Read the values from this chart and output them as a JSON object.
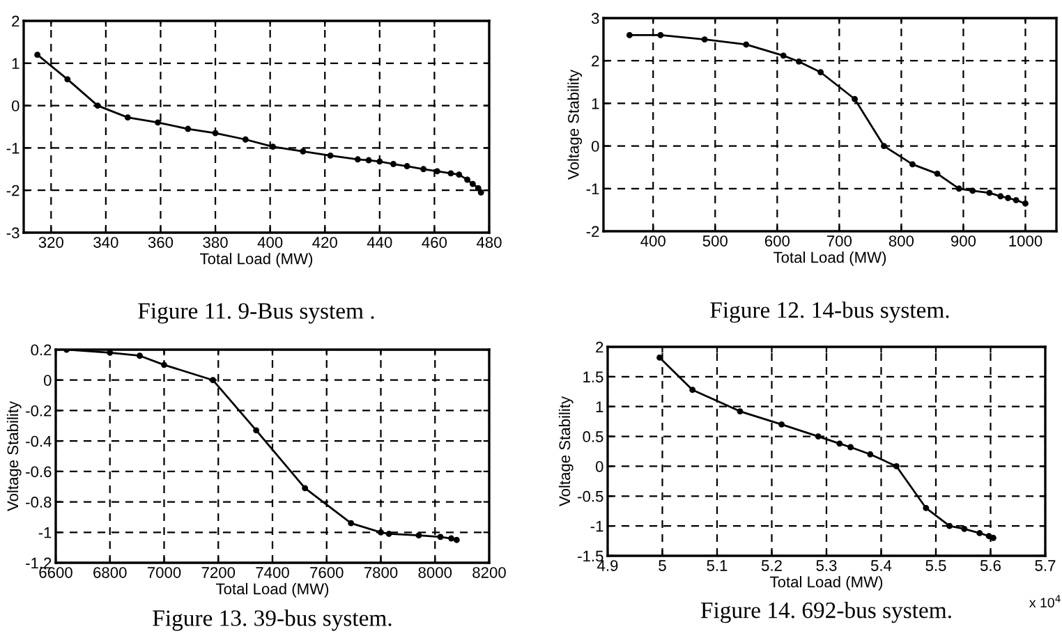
{
  "chart_data": [
    {
      "type": "line",
      "title": "Figure 11. 9-Bus system .",
      "xlabel": "Total Load (MW)",
      "marker": "circle",
      "line_style": "solid",
      "grid": true,
      "x": [
        315,
        326,
        337,
        348,
        359,
        370,
        380,
        391,
        401,
        412,
        422,
        432,
        436,
        440,
        445,
        450,
        456,
        461,
        466,
        469,
        472,
        474,
        476,
        477
      ],
      "series": [
        {
          "color": "#000000",
          "values": [
            1.2,
            0.62,
            0,
            -0.28,
            -0.4,
            -0.55,
            -0.65,
            -0.8,
            -0.97,
            -1.08,
            -1.18,
            -1.27,
            -1.29,
            -1.32,
            -1.38,
            -1.43,
            -1.5,
            -1.55,
            -1.6,
            -1.63,
            -1.75,
            -1.85,
            -1.95,
            -2.05
          ]
        }
      ],
      "xlim": [
        310,
        480
      ],
      "xticks": [
        320,
        340,
        360,
        380,
        400,
        420,
        440,
        460,
        480
      ],
      "ylim": [
        -3,
        2
      ],
      "yticks": [
        -3,
        -2,
        -1,
        0,
        1,
        2
      ]
    },
    {
      "type": "line",
      "title": "Figure 12. 14-bus system.",
      "xlabel": "Total Load (MW)",
      "ylabel": "Voltage Stability",
      "marker": "circle",
      "line_style": "solid",
      "grid": true,
      "x": [
        362,
        412,
        483,
        550,
        610,
        635,
        670,
        725,
        772,
        818,
        858,
        893,
        915,
        942,
        960,
        972,
        985,
        1000
      ],
      "series": [
        {
          "color": "#000000",
          "values": [
            2.6,
            2.6,
            2.5,
            2.38,
            2.12,
            1.98,
            1.73,
            1.1,
            0,
            -0.43,
            -0.65,
            -1.0,
            -1.05,
            -1.1,
            -1.18,
            -1.22,
            -1.27,
            -1.35
          ]
        }
      ],
      "xlim": [
        320,
        1050
      ],
      "xticks": [
        400,
        500,
        600,
        700,
        800,
        900,
        1000
      ],
      "ylim": [
        -2,
        3
      ],
      "yticks": [
        -2,
        -1,
        0,
        1,
        2,
        3
      ]
    },
    {
      "type": "line",
      "title": "Figure 13. 39-bus system.",
      "xlabel": "Total Load (MW)",
      "ylabel": "Voltage Stability",
      "marker": "circle",
      "line_style": "solid",
      "grid": true,
      "x": [
        6640,
        6800,
        6910,
        7000,
        7180,
        7340,
        7520,
        7690,
        7800,
        7830,
        7940,
        8020,
        8060,
        8080
      ],
      "series": [
        {
          "color": "#000000",
          "values": [
            0.2,
            0.18,
            0.16,
            0.1,
            0,
            -0.33,
            -0.71,
            -0.94,
            -1.0,
            -1.01,
            -1.02,
            -1.03,
            -1.04,
            -1.05
          ]
        }
      ],
      "xlim": [
        6600,
        8200
      ],
      "xticks": [
        6600,
        6800,
        7000,
        7200,
        7400,
        7600,
        7800,
        8000,
        8200
      ],
      "ylim": [
        -1.2,
        0.2
      ],
      "yticks": [
        -1.2,
        -1,
        -0.8,
        -0.6,
        -0.4,
        -0.2,
        0,
        0.2
      ]
    },
    {
      "type": "line",
      "title": "Figure 14. 692-bus system.",
      "xlabel": "Total Load (MW)",
      "ylabel": "Voltage Stability",
      "marker": "circle",
      "line_style": "solid",
      "grid": true,
      "annotations": [
        "x 10$^{4}$"
      ],
      "x": [
        4.995,
        5.055,
        5.142,
        5.218,
        5.285,
        5.324,
        5.344,
        5.38,
        5.428,
        5.482,
        5.525,
        5.552,
        5.58,
        5.597,
        5.605
      ],
      "series": [
        {
          "color": "#000000",
          "values": [
            1.82,
            1.28,
            0.92,
            0.7,
            0.5,
            0.38,
            0.32,
            0.2,
            0,
            -0.7,
            -1.0,
            -1.05,
            -1.12,
            -1.17,
            -1.2
          ]
        }
      ],
      "xlim": [
        4.9,
        5.7
      ],
      "xticks": [
        4.9,
        5,
        5.1,
        5.2,
        5.3,
        5.4,
        5.5,
        5.6,
        5.7
      ],
      "ylim": [
        -1.5,
        2
      ],
      "yticks": [
        -1.5,
        -1,
        -0.5,
        0,
        0.5,
        1,
        1.5,
        2
      ]
    }
  ]
}
